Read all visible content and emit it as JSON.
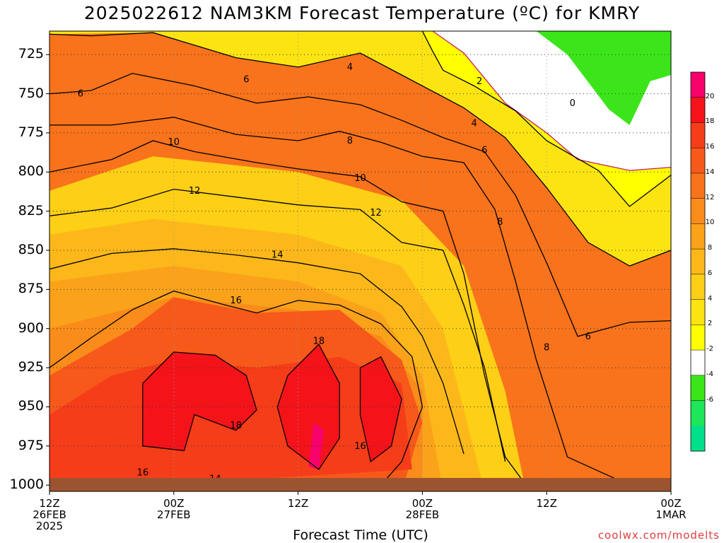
{
  "title": "2025022612 NAM3KM Forecast Temperature (ºC) for KMRY",
  "xlabel": "Forecast Time (UTC)",
  "credit": "coolwx.com/modelts",
  "chart_data": {
    "type": "heatmap",
    "title": "2025022612 NAM3KM Forecast Temperature (ºC) for KMRY",
    "xlabel": "Forecast Time (UTC)",
    "ylabel": "",
    "x_ticks": [
      {
        "hour": 0,
        "lines": [
          "12Z",
          "26FEB",
          "2025"
        ]
      },
      {
        "hour": 12,
        "lines": [
          "00Z",
          "27FEB"
        ]
      },
      {
        "hour": 24,
        "lines": [
          "12Z"
        ]
      },
      {
        "hour": 36,
        "lines": [
          "00Z",
          "28FEB"
        ]
      },
      {
        "hour": 48,
        "lines": [
          "12Z"
        ]
      },
      {
        "hour": 60,
        "lines": [
          "00Z",
          "1MAR"
        ]
      }
    ],
    "xlim": [
      0,
      60
    ],
    "y_ticks": [
      725,
      750,
      775,
      800,
      825,
      850,
      875,
      900,
      925,
      950,
      975,
      1000
    ],
    "ylim": [
      1004,
      710
    ],
    "colorbar_ticks": [
      20,
      18,
      16,
      14,
      12,
      10,
      8,
      6,
      4,
      2,
      -2,
      -4,
      -6
    ],
    "colorbar_colors": [
      "#f7026b",
      "#f5131a",
      "#f63d19",
      "#f7591a",
      "#f8731b",
      "#f98c1a",
      "#fba21b",
      "#fcb81a",
      "#fdcf16",
      "#fbe412",
      "#ffff00",
      "#ffffff",
      "#3ce51a",
      "#1ee658",
      "#00e08a"
    ],
    "contours": [
      {
        "level": 0,
        "color": "#c21a6e",
        "points": [
          [
            37,
            710
          ],
          [
            40,
            724
          ],
          [
            44,
            756
          ],
          [
            48,
            775
          ],
          [
            51,
            792
          ],
          [
            56,
            799
          ],
          [
            60,
            797
          ]
        ]
      },
      {
        "level": 2,
        "color": "#000000",
        "points": [
          [
            36,
            710
          ],
          [
            37,
            723
          ],
          [
            38,
            735
          ],
          [
            41,
            745
          ],
          [
            45,
            761
          ],
          [
            48,
            780
          ],
          [
            53,
            799
          ],
          [
            56,
            822
          ],
          [
            60,
            802
          ]
        ]
      },
      {
        "level": 4,
        "color": "#000000",
        "points": [
          [
            0,
            712
          ],
          [
            4,
            713
          ],
          [
            10,
            711
          ],
          [
            14,
            719
          ],
          [
            18,
            727
          ],
          [
            24,
            733
          ],
          [
            30,
            724
          ],
          [
            34,
            738
          ],
          [
            40,
            759
          ],
          [
            44,
            778
          ],
          [
            48,
            810
          ],
          [
            52,
            845
          ],
          [
            56,
            860
          ],
          [
            60,
            850
          ]
        ]
      },
      {
        "level": 6,
        "color": "#000000",
        "points": [
          [
            0,
            750
          ],
          [
            4,
            748
          ],
          [
            8,
            737
          ],
          [
            14,
            745
          ],
          [
            20,
            756
          ],
          [
            25,
            752
          ],
          [
            30,
            757
          ],
          [
            34,
            767
          ],
          [
            38,
            778
          ],
          [
            42,
            787
          ],
          [
            45,
            815
          ],
          [
            48,
            858
          ],
          [
            51,
            905
          ],
          [
            56,
            896
          ],
          [
            60,
            895
          ]
        ]
      },
      {
        "level": 8,
        "color": "#000000",
        "points": [
          [
            0,
            770
          ],
          [
            6,
            770
          ],
          [
            12,
            765
          ],
          [
            18,
            776
          ],
          [
            24,
            780
          ],
          [
            28,
            774
          ],
          [
            32,
            781
          ],
          [
            36,
            790
          ],
          [
            40,
            794
          ],
          [
            43,
            824
          ],
          [
            45,
            870
          ],
          [
            47,
            920
          ],
          [
            50,
            982
          ],
          [
            56,
            1000
          ],
          [
            60,
            1000
          ]
        ]
      },
      {
        "level": 10,
        "color": "#000000",
        "points": [
          [
            0,
            800
          ],
          [
            6,
            792
          ],
          [
            10,
            780
          ],
          [
            14,
            787
          ],
          [
            20,
            794
          ],
          [
            24,
            798
          ],
          [
            30,
            803
          ],
          [
            34,
            819
          ],
          [
            38,
            825
          ],
          [
            40,
            865
          ],
          [
            42,
            930
          ],
          [
            44,
            982
          ],
          [
            46,
            1000
          ]
        ]
      },
      {
        "level": 12,
        "color": "#000000",
        "points": [
          [
            0,
            828
          ],
          [
            6,
            823
          ],
          [
            12,
            811
          ],
          [
            18,
            816
          ],
          [
            24,
            821
          ],
          [
            30,
            824
          ],
          [
            34,
            845
          ],
          [
            38,
            850
          ],
          [
            40,
            885
          ],
          [
            42,
            925
          ],
          [
            44,
            985
          ]
        ]
      },
      {
        "level": 14,
        "color": "#000000",
        "points": [
          [
            0,
            862
          ],
          [
            6,
            852
          ],
          [
            12,
            849
          ],
          [
            18,
            853
          ],
          [
            24,
            858
          ],
          [
            30,
            865
          ],
          [
            34,
            886
          ],
          [
            36,
            905
          ],
          [
            38,
            935
          ],
          [
            40,
            980
          ]
        ]
      },
      {
        "level": 16,
        "color": "#000000",
        "points": [
          [
            0,
            925
          ],
          [
            4,
            906
          ],
          [
            8,
            888
          ],
          [
            12,
            876
          ],
          [
            17,
            885
          ],
          [
            20,
            890
          ],
          [
            24,
            882
          ],
          [
            28,
            885
          ],
          [
            32,
            897
          ],
          [
            35,
            918
          ],
          [
            36,
            950
          ],
          [
            34,
            985
          ],
          [
            32,
            1000
          ]
        ]
      },
      {
        "level": 18,
        "color": "#000000",
        "points": [
          [
            9,
            935
          ],
          [
            12,
            915
          ],
          [
            16,
            917
          ],
          [
            19,
            930
          ],
          [
            20,
            952
          ],
          [
            18,
            965
          ],
          [
            14,
            955
          ],
          [
            13,
            978
          ],
          [
            9,
            975
          ],
          [
            9,
            935
          ]
        ]
      },
      {
        "level": 18,
        "color": "#000000",
        "points": [
          [
            23,
            930
          ],
          [
            26,
            910
          ],
          [
            28,
            935
          ],
          [
            28,
            970
          ],
          [
            26,
            990
          ],
          [
            23,
            975
          ],
          [
            22,
            950
          ],
          [
            23,
            930
          ]
        ]
      },
      {
        "level": 18,
        "color": "#000000",
        "points": [
          [
            30,
            925
          ],
          [
            32,
            918
          ],
          [
            34,
            945
          ],
          [
            33,
            975
          ],
          [
            31,
            985
          ],
          [
            30,
            955
          ],
          [
            30,
            925
          ]
        ]
      }
    ],
    "contour_labels": [
      {
        "text": "2",
        "x": 41.5,
        "y": 742
      },
      {
        "text": "0",
        "x": 50.5,
        "y": 756
      },
      {
        "text": "4",
        "x": 29,
        "y": 733
      },
      {
        "text": "4",
        "x": 41,
        "y": 769
      },
      {
        "text": "6",
        "x": 3,
        "y": 750
      },
      {
        "text": "6",
        "x": 19,
        "y": 741
      },
      {
        "text": "6",
        "x": 42,
        "y": 786
      },
      {
        "text": "6",
        "x": 52,
        "y": 905
      },
      {
        "text": "8",
        "x": 29,
        "y": 780
      },
      {
        "text": "8",
        "x": 43.5,
        "y": 832
      },
      {
        "text": "8",
        "x": 48,
        "y": 912
      },
      {
        "text": "10",
        "x": 12,
        "y": 781
      },
      {
        "text": "10",
        "x": 30,
        "y": 804
      },
      {
        "text": "12",
        "x": 14,
        "y": 812
      },
      {
        "text": "12",
        "x": 31.5,
        "y": 826
      },
      {
        "text": "14",
        "x": 22,
        "y": 853
      },
      {
        "text": "14",
        "x": 16,
        "y": 996
      },
      {
        "text": "16",
        "x": 18,
        "y": 882
      },
      {
        "text": "16",
        "x": 9,
        "y": 992
      },
      {
        "text": "16",
        "x": 30,
        "y": 975
      },
      {
        "text": "18",
        "x": 26,
        "y": 908
      },
      {
        "text": "18",
        "x": 18,
        "y": 962
      }
    ],
    "grid": true,
    "legend": "colorbar-right"
  }
}
